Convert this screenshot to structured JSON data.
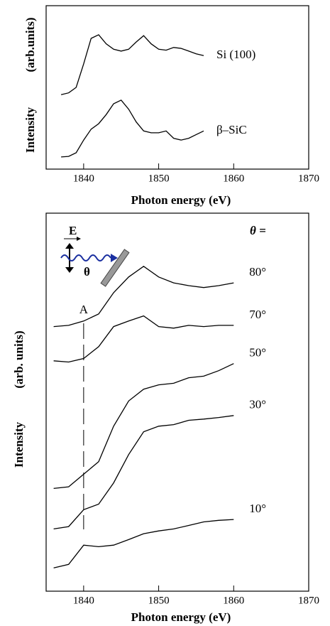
{
  "chart_data": [
    {
      "type": "line",
      "xlabel": "Photon energy  (eV)",
      "ylabel": "Intensity",
      "ylabel_unit": "(arb.units)",
      "xlim": [
        1835,
        1870
      ],
      "xticks": [
        1840,
        1850,
        1860,
        1870
      ],
      "ylim": [
        1,
        10
      ],
      "x": [
        1837,
        1838,
        1839,
        1840,
        1841,
        1842,
        1843,
        1844,
        1845,
        1846,
        1847,
        1848,
        1849,
        1850,
        1851,
        1852,
        1853,
        1854,
        1855,
        1856
      ],
      "series": [
        {
          "name": "Si (100)",
          "color": "#000000",
          "values": [
            5.1,
            5.2,
            5.5,
            6.8,
            8.2,
            8.4,
            7.9,
            7.6,
            7.5,
            7.6,
            8.0,
            8.35,
            7.9,
            7.6,
            7.55,
            7.7,
            7.65,
            7.5,
            7.35,
            7.25
          ]
        },
        {
          "name": "β–SiC",
          "color": "#000000",
          "values": [
            1.67,
            1.7,
            1.9,
            2.6,
            3.2,
            3.5,
            4.0,
            4.6,
            4.8,
            4.3,
            3.6,
            3.1,
            3.0,
            3.0,
            3.1,
            2.7,
            2.6,
            2.7,
            2.9,
            3.1
          ]
        }
      ]
    },
    {
      "type": "line",
      "xlabel": "Photon energy (eV)",
      "ylabel": "Intensity",
      "ylabel_unit": "(arb. units)",
      "xlim": [
        1835,
        1870
      ],
      "xticks": [
        1840,
        1850,
        1860,
        1870
      ],
      "ylim": [
        0.4,
        10
      ],
      "legend_title": "θ =",
      "annotation": {
        "text": "A",
        "x": 1840
      },
      "inset_labels": [
        "E",
        "θ"
      ],
      "x": [
        1836,
        1838,
        1840,
        1842,
        1844,
        1846,
        1848,
        1850,
        1852,
        1854,
        1856,
        1858,
        1860
      ],
      "series": [
        {
          "name": "80°",
          "color": "#000000",
          "values": [
            7.12,
            7.15,
            7.26,
            7.44,
            7.98,
            8.38,
            8.65,
            8.38,
            8.23,
            8.16,
            8.11,
            8.16,
            8.23
          ]
        },
        {
          "name": "70°",
          "color": "#000000",
          "values": [
            6.25,
            6.22,
            6.31,
            6.61,
            7.12,
            7.26,
            7.39,
            7.12,
            7.08,
            7.15,
            7.12,
            7.15,
            7.15
          ]
        },
        {
          "name": "50°",
          "color": "#000000",
          "values": [
            3.01,
            3.05,
            3.37,
            3.69,
            4.59,
            5.23,
            5.53,
            5.64,
            5.68,
            5.82,
            5.86,
            6.0,
            6.18
          ]
        },
        {
          "name": "30°",
          "color": "#000000",
          "values": [
            1.98,
            2.04,
            2.47,
            2.61,
            3.15,
            3.87,
            4.45,
            4.59,
            4.63,
            4.74,
            4.77,
            4.81,
            4.86
          ]
        },
        {
          "name": "10°",
          "color": "#000000",
          "values": [
            0.99,
            1.08,
            1.57,
            1.53,
            1.57,
            1.71,
            1.86,
            1.93,
            1.98,
            2.07,
            2.16,
            2.2,
            2.22
          ]
        }
      ]
    }
  ]
}
